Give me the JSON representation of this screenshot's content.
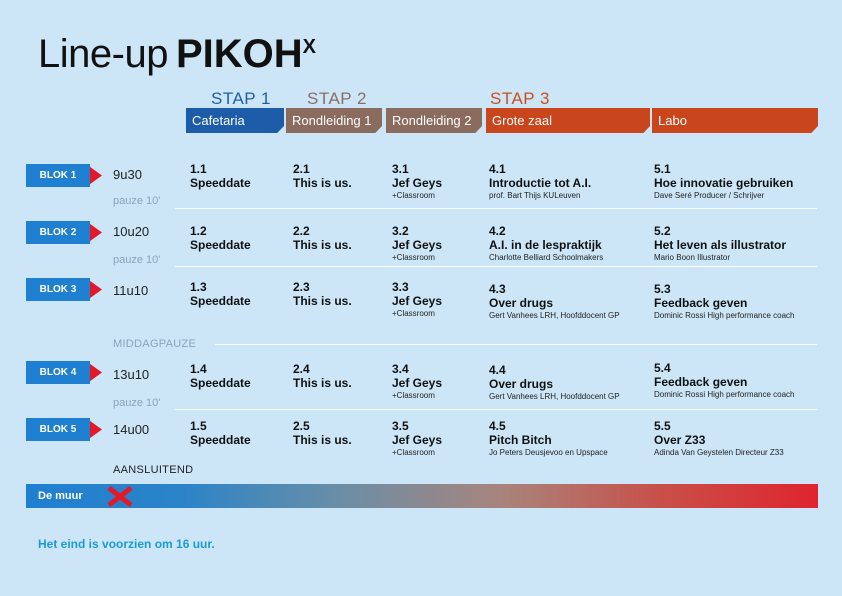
{
  "title": {
    "prefix": "Line-up",
    "brand": "PIKOH",
    "sup": "X"
  },
  "stappen": [
    "STAP 1",
    "STAP 2",
    "STAP 3"
  ],
  "tabs": [
    "Cafetaria",
    "Rondleiding 1",
    "Rondleiding 2",
    "Grote zaal",
    "Labo"
  ],
  "bloks": [
    {
      "label": "BLOK 1",
      "time": "9u30"
    },
    {
      "label": "BLOK 2",
      "time": "10u20"
    },
    {
      "label": "BLOK 3",
      "time": "11u10"
    },
    {
      "label": "BLOK 4",
      "time": "13u10"
    },
    {
      "label": "BLOK 5",
      "time": "14u00"
    }
  ],
  "pauze": [
    "pauze 10'",
    "pauze 10'",
    "pauze 10'"
  ],
  "middagpauze": "MIDDAGPAUZE",
  "aansluitend": "AANSLUITEND",
  "rows": [
    [
      {
        "num": "1.1",
        "name": "Speeddate",
        "sub": ""
      },
      {
        "num": "2.1",
        "name": "This is us.",
        "sub": ""
      },
      {
        "num": "3.1",
        "name": "Jef Geys",
        "sub": "+Classroom"
      },
      {
        "num": "4.1",
        "name": "Introductie tot A.I.",
        "sub": "prof. Bart Thijs KULeuven"
      },
      {
        "num": "5.1",
        "name": "Hoe innovatie gebruiken",
        "sub": "Dave Seré Producer / Schrijver"
      }
    ],
    [
      {
        "num": "1.2",
        "name": "Speeddate",
        "sub": ""
      },
      {
        "num": "2.2",
        "name": "This is us.",
        "sub": ""
      },
      {
        "num": "3.2",
        "name": "Jef Geys",
        "sub": "+Classroom"
      },
      {
        "num": "4.2",
        "name": "A.I. in de lespraktijk",
        "sub": "Charlotte Belliard  Schoolmakers"
      },
      {
        "num": "5.2",
        "name": "Het leven als illustrator",
        "sub": "Mario Boon Illustrator"
      }
    ],
    [
      {
        "num": "1.3",
        "name": "Speeddate",
        "sub": ""
      },
      {
        "num": "2.3",
        "name": "This is us.",
        "sub": ""
      },
      {
        "num": "3.3",
        "name": "Jef Geys",
        "sub": "+Classroom"
      },
      {
        "num": "4.3",
        "name": "Over drugs",
        "sub": "Gert Vanhees LRH, Hoofddocent GP"
      },
      {
        "num": "5.3",
        "name": "Feedback geven",
        "sub": "Dominic Rossi High performance coach"
      }
    ],
    [
      {
        "num": "1.4",
        "name": "Speeddate",
        "sub": ""
      },
      {
        "num": "2.4",
        "name": "This is us.",
        "sub": ""
      },
      {
        "num": "3.4",
        "name": "Jef Geys",
        "sub": "+Classroom"
      },
      {
        "num": "4.4",
        "name": "Over drugs",
        "sub": "Gert Vanhees LRH, Hoofddocent GP"
      },
      {
        "num": "5.4",
        "name": "Feedback geven",
        "sub": "Dominic Rossi High performance coach"
      }
    ],
    [
      {
        "num": "1.5",
        "name": "Speeddate",
        "sub": ""
      },
      {
        "num": "2.5",
        "name": "This is us.",
        "sub": ""
      },
      {
        "num": "3.5",
        "name": "Jef Geys",
        "sub": "+Classroom"
      },
      {
        "num": "4.5",
        "name": "Pitch Bitch",
        "sub": "Jo Peters Deusjevoo en Upspace"
      },
      {
        "num": "5.5",
        "name": "Over Z33",
        "sub": "Adinda Van Geystelen Directeur Z33"
      }
    ]
  ],
  "muur": "De muur",
  "footer": "Het eind is voorzien om 16 uur.",
  "colors": {
    "blue": "#1f7fd0",
    "red": "#e2192b",
    "brown": "#8c6b5f",
    "orange": "#c9461c"
  }
}
